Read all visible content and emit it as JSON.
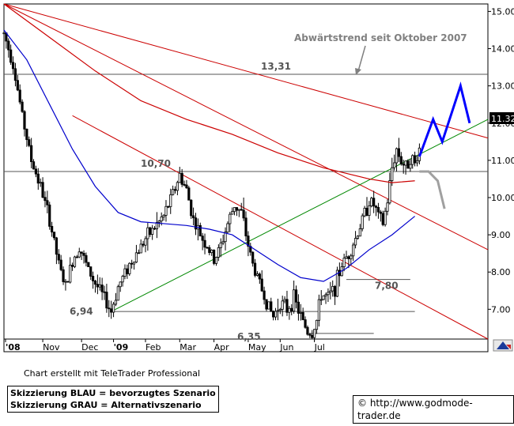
{
  "chart_data": {
    "type": "candlestick",
    "title": "",
    "y_axis": {
      "min": 6.2,
      "max": 15.2,
      "ticks": [
        "15.00",
        "14.00",
        "13.00",
        "12.00",
        "11.00",
        "10.00",
        "9.00",
        "8.00",
        "7.00"
      ],
      "side": "right"
    },
    "x_axis": {
      "ticks": [
        "'08",
        "Nov",
        "Dec",
        "'09",
        "Feb",
        "Mar",
        "Apr",
        "May",
        "Jun",
        "Jul"
      ]
    },
    "last_price_label": "11.32",
    "last_price": 11.32,
    "annotation": "Abwärtstrend seit Oktober 2007",
    "levels": [
      {
        "label": "13,31",
        "value": 13.31,
        "color": "#555555"
      },
      {
        "label": "10,70",
        "value": 10.7,
        "color": "#555555"
      },
      {
        "label": "7,80",
        "value": 7.8,
        "color": "#555555"
      },
      {
        "label": "6,94",
        "value": 6.94,
        "color": "#555555"
      },
      {
        "label": "6,35",
        "value": 6.35,
        "color": "#555555"
      }
    ],
    "series": [
      {
        "color": "#000000"
      },
      {
        "color": "#0000cc"
      },
      {
        "color": "#cc0000"
      },
      {
        "color": "#cc0000"
      },
      {
        "color": "#cc0000"
      },
      {
        "color": "#cc0000"
      },
      {
        "color": "#008800"
      },
      {
        "color": "#0000ff"
      },
      {
        "color": "#a0a0a0"
      }
    ],
    "price_path": [
      [
        0,
        14.4
      ],
      [
        4,
        13.6
      ],
      [
        8,
        12.2
      ],
      [
        12,
        11.0
      ],
      [
        16,
        10.3
      ],
      [
        20,
        9.4
      ],
      [
        24,
        8.2
      ],
      [
        27,
        7.6
      ],
      [
        30,
        8.3
      ],
      [
        33,
        8.7
      ],
      [
        36,
        8.2
      ],
      [
        39,
        7.8
      ],
      [
        43,
        7.4
      ],
      [
        47,
        6.94
      ],
      [
        50,
        7.6
      ],
      [
        54,
        8.1
      ],
      [
        58,
        8.5
      ],
      [
        62,
        8.9
      ],
      [
        66,
        9.2
      ],
      [
        70,
        9.5
      ],
      [
        74,
        10.1
      ],
      [
        77,
        10.6
      ],
      [
        80,
        10.2
      ],
      [
        83,
        9.4
      ],
      [
        86,
        9.0
      ],
      [
        89,
        8.7
      ],
      [
        92,
        8.3
      ],
      [
        95,
        8.7
      ],
      [
        98,
        9.3
      ],
      [
        101,
        9.8
      ],
      [
        104,
        9.6
      ],
      [
        106,
        9.0
      ],
      [
        109,
        8.2
      ],
      [
        112,
        7.7
      ],
      [
        115,
        7.2
      ],
      [
        118,
        6.8
      ],
      [
        121,
        7.2
      ],
      [
        124,
        7.0
      ],
      [
        127,
        7.3
      ],
      [
        130,
        6.8
      ],
      [
        133,
        6.4
      ],
      [
        135,
        6.35
      ],
      [
        137,
        6.7
      ],
      [
        139,
        7.4
      ],
      [
        142,
        7.3
      ],
      [
        145,
        7.6
      ],
      [
        148,
        8.2
      ],
      [
        151,
        8.5
      ],
      [
        154,
        8.9
      ],
      [
        157,
        9.4
      ],
      [
        160,
        9.9
      ],
      [
        162,
        9.8
      ],
      [
        164,
        9.5
      ],
      [
        166,
        9.3
      ],
      [
        168,
        9.9
      ],
      [
        170,
        10.8
      ],
      [
        172,
        11.3
      ],
      [
        174,
        11.0
      ],
      [
        176,
        10.8
      ],
      [
        178,
        11.1
      ],
      [
        180,
        10.9
      ],
      [
        182,
        11.32
      ]
    ],
    "moving_average_blue": [
      [
        0,
        14.5
      ],
      [
        10,
        13.7
      ],
      [
        20,
        12.5
      ],
      [
        30,
        11.3
      ],
      [
        40,
        10.3
      ],
      [
        50,
        9.6
      ],
      [
        60,
        9.35
      ],
      [
        70,
        9.3
      ],
      [
        80,
        9.25
      ],
      [
        90,
        9.15
      ],
      [
        100,
        9.0
      ],
      [
        110,
        8.6
      ],
      [
        120,
        8.2
      ],
      [
        130,
        7.85
      ],
      [
        140,
        7.75
      ],
      [
        150,
        8.1
      ],
      [
        160,
        8.6
      ],
      [
        170,
        9.0
      ],
      [
        180,
        9.5
      ]
    ],
    "moving_average_red": [
      [
        0,
        15.2
      ],
      [
        20,
        14.3
      ],
      [
        40,
        13.4
      ],
      [
        60,
        12.6
      ],
      [
        80,
        12.1
      ],
      [
        100,
        11.7
      ],
      [
        120,
        11.2
      ],
      [
        140,
        10.8
      ],
      [
        160,
        10.5
      ],
      [
        170,
        10.4
      ],
      [
        180,
        10.45
      ]
    ],
    "trendlines": [
      {
        "color": "#cc0000",
        "from": [
          0,
          15.2
        ],
        "to": [
          212,
          11.6
        ]
      },
      {
        "color": "#cc0000",
        "from": [
          0,
          15.2
        ],
        "to": [
          212,
          8.6
        ]
      },
      {
        "color": "#cc0000",
        "from": [
          30,
          12.2
        ],
        "to": [
          212,
          6.2
        ]
      },
      {
        "color": "#008800",
        "from": [
          47,
          6.94
        ],
        "to": [
          212,
          12.1
        ]
      }
    ],
    "scenario_blue": [
      [
        182,
        11.1
      ],
      [
        188,
        12.1
      ],
      [
        192,
        11.5
      ],
      [
        200,
        13.0
      ],
      [
        204,
        12.0
      ]
    ],
    "scenario_grey": [
      [
        182,
        10.7
      ],
      [
        186,
        10.7
      ],
      [
        190,
        10.45
      ],
      [
        193,
        9.7
      ]
    ]
  },
  "credit": "Chart erstellt mit TeleTrader Professional",
  "legend": {
    "blue": "Skizzierung BLAU = bevorzugtes Szenario",
    "grey": "Skizzierung GRAU = Alternativszenario"
  },
  "source": "© http://www.godmode-trader.de"
}
